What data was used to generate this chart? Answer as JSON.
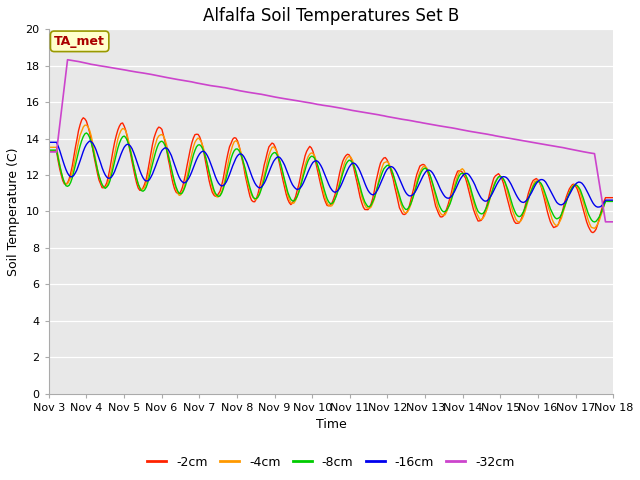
{
  "title": "Alfalfa Soil Temperatures Set B",
  "xlabel": "Time",
  "ylabel": "Soil Temperature (C)",
  "ylim": [
    0,
    20
  ],
  "xlim": [
    0,
    15
  ],
  "yticks": [
    0,
    2,
    4,
    6,
    8,
    10,
    12,
    14,
    16,
    18,
    20
  ],
  "xtick_labels": [
    "Nov 3",
    "Nov 4",
    "Nov 5",
    "Nov 6",
    "Nov 7",
    "Nov 8",
    "Nov 9",
    "Nov 10",
    "Nov 11",
    "Nov 12",
    "Nov 13",
    "Nov 14",
    "Nov 15",
    "Nov 16",
    "Nov 17",
    "Nov 18"
  ],
  "annotation_text": "TA_met",
  "annotation_color": "#aa0000",
  "annotation_bg": "#ffffcc",
  "line_colors": {
    "-2cm": "#ff2200",
    "-4cm": "#ff9900",
    "-8cm": "#00cc00",
    "-16cm": "#0000ee",
    "-32cm": "#cc44cc"
  },
  "legend_labels": [
    "-2cm",
    "-4cm",
    "-8cm",
    "-16cm",
    "-32cm"
  ],
  "fig_bg_color": "#ffffff",
  "plot_bg_color": "#e8e8e8",
  "grid_color": "#ffffff",
  "title_fontsize": 12,
  "label_fontsize": 9,
  "tick_fontsize": 8
}
